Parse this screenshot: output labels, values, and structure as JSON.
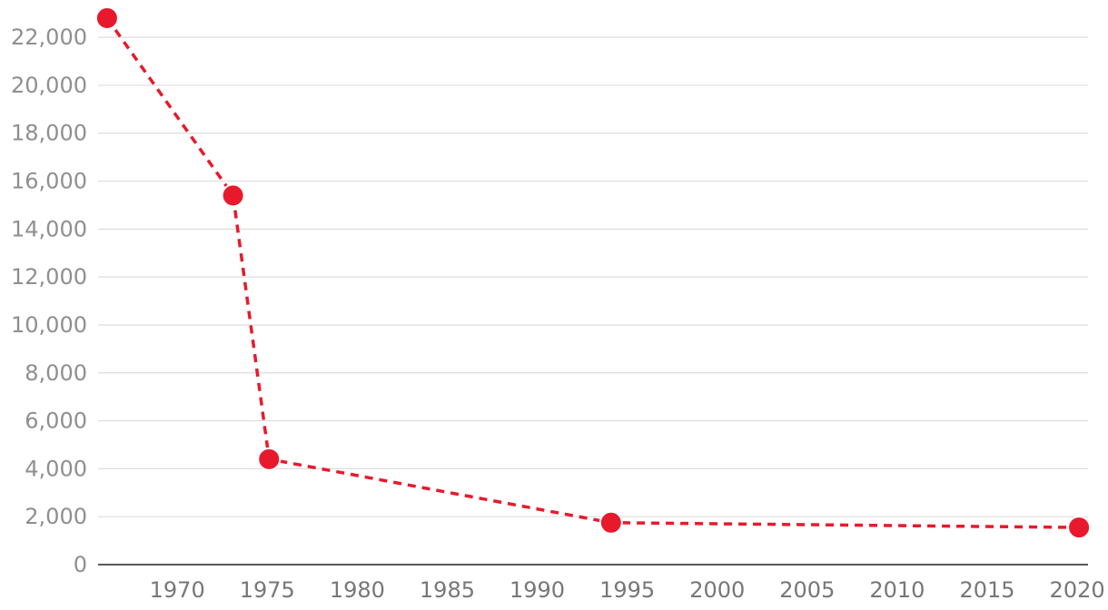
{
  "chart_data": {
    "type": "line",
    "title": "",
    "xlabel": "",
    "ylabel": "",
    "x_ticks": [
      1970,
      1975,
      1980,
      1985,
      1990,
      1995,
      2000,
      2005,
      2010,
      2015,
      2020
    ],
    "y_ticks": [
      0,
      2000,
      4000,
      6000,
      8000,
      10000,
      12000,
      14000,
      16000,
      18000,
      20000,
      22000
    ],
    "y_tick_labels": [
      "0",
      "2,000",
      "4,000",
      "6,000",
      "8,000",
      "10,000",
      "12,000",
      "14,000",
      "16,000",
      "18,000",
      "20,000",
      "22,000"
    ],
    "xlim": [
      1965.5,
      2020.5
    ],
    "ylim": [
      0,
      22800
    ],
    "grid": true,
    "series": [
      {
        "color": "#e8192c",
        "line_style": "dashed",
        "marker": "circle",
        "points": [
          {
            "x": 1966,
            "y": 22800
          },
          {
            "x": 1973,
            "y": 15400
          },
          {
            "x": 1975,
            "y": 4400
          },
          {
            "x": 1994,
            "y": 1750
          },
          {
            "x": 2020,
            "y": 1550
          }
        ]
      }
    ]
  }
}
